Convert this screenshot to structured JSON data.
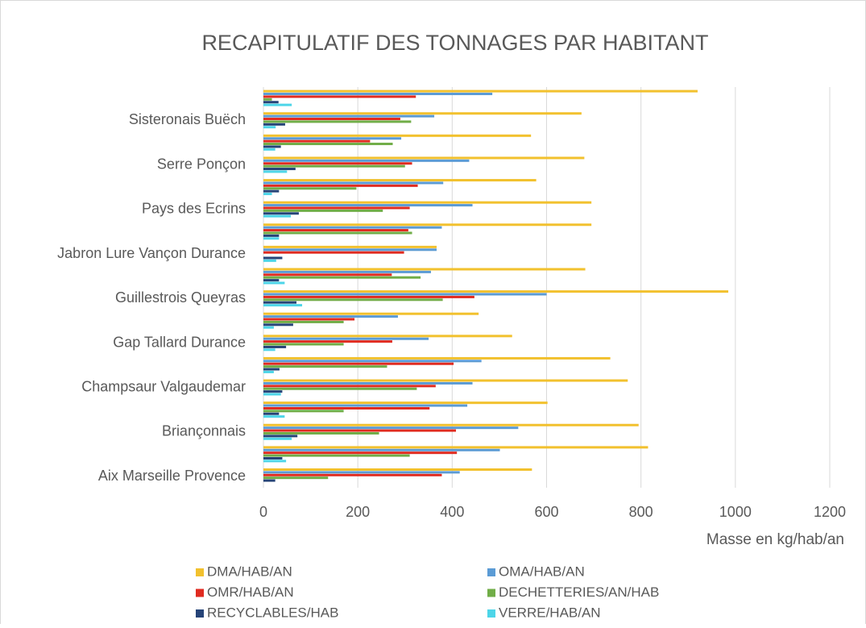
{
  "chart_data": {
    "type": "hbar",
    "title": "RECAPITULATIF DES TONNAGES PAR HABITANT",
    "xlabel": "Masse en kg/hab/an",
    "categories": [
      "Aix Marseille Provence",
      null,
      "Briançonnais",
      null,
      "Champsaur Valgaudemar",
      null,
      "Gap Tallard Durance",
      null,
      "Guillestrois Queyras",
      null,
      "Jabron Lure Vançon Durance",
      null,
      "Pays des Ecrins",
      null,
      "Serre Ponçon ",
      null,
      "Sisteronais Buëch",
      null
    ],
    "series": [
      {
        "name": "DMA/HAB/AN",
        "color": "#f2c12e",
        "values": [
          569,
          815,
          795,
          602,
          772,
          735,
          527,
          456,
          985,
          682,
          367,
          695,
          695,
          578,
          680,
          567,
          674,
          920
        ]
      },
      {
        "name": "OMA/HAB/AN",
        "color": "#5b9bd5",
        "values": [
          416,
          501,
          540,
          432,
          443,
          462,
          350,
          285,
          600,
          355,
          367,
          378,
          443,
          381,
          436,
          292,
          362,
          485
        ]
      },
      {
        "name": "OMR/HAB/AN",
        "color": "#e02b20",
        "values": [
          378,
          410,
          408,
          352,
          365,
          403,
          273,
          193,
          447,
          272,
          298,
          307,
          310,
          327,
          315,
          226,
          290,
          323
        ]
      },
      {
        "name": "DECHETTERIES/AN/HAB",
        "color": "#70ad47",
        "values": [
          137,
          310,
          245,
          170,
          325,
          262,
          170,
          170,
          380,
          333,
          0,
          315,
          253,
          197,
          300,
          274,
          313,
          18
        ]
      },
      {
        "name": "RECYCLABLES/HAB",
        "color": "#264478",
        "values": [
          25,
          40,
          72,
          33,
          40,
          34,
          48,
          63,
          70,
          33,
          40,
          33,
          75,
          33,
          68,
          37,
          46,
          32
        ]
      },
      {
        "name": "VERRE/HAB/AN",
        "color": "#4dd5e8",
        "values": [
          0,
          48,
          60,
          45,
          37,
          22,
          25,
          22,
          82,
          45,
          27,
          33,
          58,
          18,
          50,
          25,
          26,
          60
        ]
      }
    ],
    "xlim": [
      0,
      1200
    ],
    "xticks": [
      0,
      200,
      400,
      600,
      800,
      1000,
      1200
    ],
    "grid": true,
    "legend": "bottom"
  }
}
